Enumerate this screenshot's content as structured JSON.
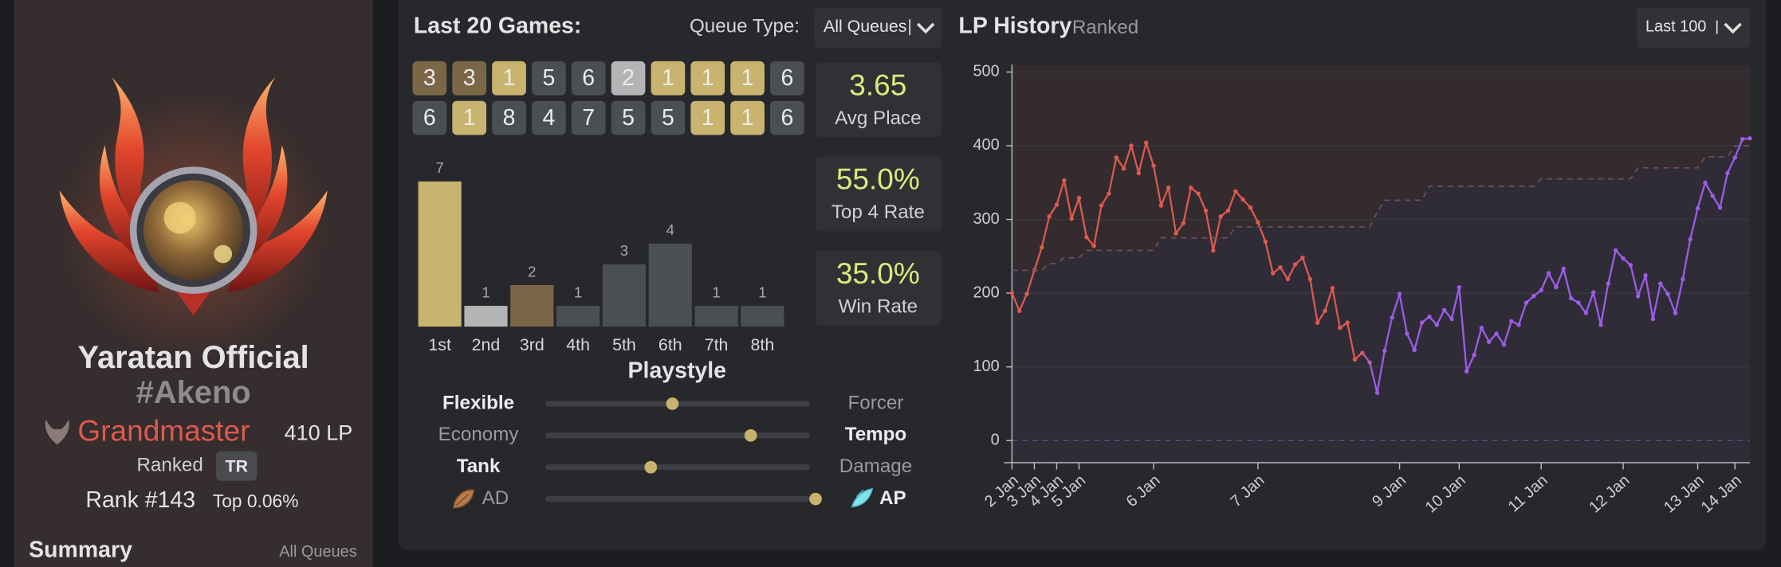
{
  "profile": {
    "name": "Yaratan Official",
    "tag": "#Akeno",
    "tier": "Grandmaster",
    "lp": "410 LP",
    "queue": "Ranked",
    "region": "TR",
    "rank": "Rank #143",
    "top_percent": "Top 0.06%",
    "summary_title": "Summary",
    "summary_filter": "All Queues"
  },
  "last_games": {
    "title": "Last 20 Games:",
    "queue_label": "Queue Type:",
    "queue_value": "All Queues",
    "placements": [
      3,
      3,
      1,
      5,
      6,
      2,
      1,
      1,
      1,
      6,
      6,
      1,
      8,
      4,
      7,
      5,
      5,
      1,
      1,
      6
    ]
  },
  "stats": [
    {
      "value": "3.65",
      "label": "Avg Place"
    },
    {
      "value": "55.0%",
      "label": "Top 4 Rate"
    },
    {
      "value": "35.0%",
      "label": "Win Rate"
    }
  ],
  "playstyle": {
    "title": "Playstyle",
    "rows": [
      {
        "left": "Flexible",
        "right": "Forcer",
        "value": 47
      },
      {
        "left": "Economy",
        "right": "Tempo",
        "value": 76
      },
      {
        "left": "Tank",
        "right": "Damage",
        "value": 39
      },
      {
        "left": "AD",
        "right": "AP",
        "value": 100
      }
    ]
  },
  "chart_data": [
    {
      "type": "bar",
      "categories": [
        "1st",
        "2nd",
        "3rd",
        "4th",
        "5th",
        "6th",
        "7th",
        "8th"
      ],
      "values": [
        7,
        1,
        2,
        1,
        3,
        4,
        1,
        1
      ],
      "colors": [
        "#c8b36f",
        "#b4b4b6",
        "#7b6647",
        "#4b4e53",
        "#4b4e53",
        "#4b4e53",
        "#4b4e53",
        "#4b4e53"
      ]
    },
    {
      "type": "line",
      "title": "LP History",
      "subtitle": "Ranked",
      "filter": "Last 100",
      "x": [
        0,
        1,
        2,
        3,
        4,
        5,
        6,
        7,
        8,
        9,
        10,
        11,
        12,
        13,
        14,
        15,
        16,
        17,
        18,
        19,
        20,
        21,
        22,
        23,
        24,
        25,
        26,
        27,
        28,
        29,
        30,
        31,
        32,
        33,
        34,
        35,
        36,
        37,
        38,
        39,
        40,
        41,
        42,
        43,
        44,
        45,
        46,
        47,
        48,
        49,
        50,
        51,
        52,
        53,
        54,
        55,
        56,
        57,
        58,
        59,
        60,
        61,
        62,
        63,
        64,
        65,
        66,
        67,
        68,
        69,
        70,
        71,
        72,
        73,
        74,
        75,
        76,
        77,
        78,
        79,
        80,
        81,
        82,
        83,
        84,
        85,
        86,
        87,
        88,
        89,
        90,
        91,
        92,
        93,
        94,
        95,
        96,
        97,
        98,
        99
      ],
      "series": [
        {
          "colors": [
            "#dc5a4e",
            "#9d5ce8"
          ],
          "values": [
            200,
            176,
            199,
            231,
            262,
            304,
            320,
            353,
            301,
            329,
            276,
            264,
            319,
            335,
            384,
            369,
            400,
            363,
            404,
            373,
            319,
            343,
            281,
            295,
            343,
            335,
            312,
            258,
            304,
            312,
            338,
            327,
            316,
            296,
            270,
            227,
            235,
            219,
            239,
            248,
            219,
            160,
            176,
            207,
            153,
            160,
            110,
            119,
            106,
            65,
            122,
            167,
            199,
            145,
            123,
            160,
            168,
            157,
            177,
            165,
            208,
            94,
            116,
            153,
            134,
            145,
            130,
            162,
            157,
            187,
            196,
            204,
            227,
            208,
            233,
            193,
            187,
            173,
            201,
            157,
            213,
            258,
            247,
            238,
            196,
            224,
            165,
            213,
            199,
            173,
            219,
            273,
            315,
            350,
            332,
            316,
            363,
            384,
            409,
            410
          ]
        },
        {
          "color": "#6e4b5c",
          "dashed": true,
          "values": [
            231,
            231,
            231,
            231,
            231,
            240,
            240,
            248,
            248,
            248,
            258,
            258,
            258,
            258,
            258,
            258,
            258,
            258,
            258,
            258,
            275,
            275,
            275,
            275,
            275,
            275,
            275,
            275,
            275,
            275,
            290,
            290,
            290,
            290,
            290,
            290,
            290,
            290,
            290,
            290,
            290,
            290,
            290,
            290,
            290,
            290,
            290,
            290,
            290,
            310,
            326,
            326,
            326,
            326,
            326,
            326,
            345,
            345,
            345,
            345,
            345,
            345,
            345,
            345,
            345,
            345,
            345,
            345,
            345,
            345,
            345,
            355,
            355,
            355,
            355,
            355,
            355,
            355,
            355,
            355,
            355,
            355,
            355,
            355,
            370,
            370,
            370,
            370,
            370,
            370,
            370,
            370,
            370,
            385,
            385,
            385,
            385,
            400,
            400,
            400
          ]
        }
      ],
      "xlim": [
        0,
        99
      ],
      "ylim": [
        -30,
        510
      ],
      "yticks": [
        0,
        100,
        200,
        300,
        400,
        500
      ],
      "xticks": [
        {
          "value": 0,
          "label": "2 Jan"
        },
        {
          "value": 3,
          "label": "3 Jan"
        },
        {
          "value": 6,
          "label": "4 Jan"
        },
        {
          "value": 9,
          "label": "5 Jan"
        },
        {
          "value": 19,
          "label": "6 Jan"
        },
        {
          "value": 33,
          "label": "7 Jan"
        },
        {
          "value": 52,
          "label": "9 Jan"
        },
        {
          "value": 60,
          "label": "10 Jan"
        },
        {
          "value": 71,
          "label": "11 Jan"
        },
        {
          "value": 82,
          "label": "12 Jan"
        },
        {
          "value": 92,
          "label": "13 Jan"
        },
        {
          "value": 97,
          "label": "14 Jan"
        }
      ],
      "grid": true
    }
  ]
}
